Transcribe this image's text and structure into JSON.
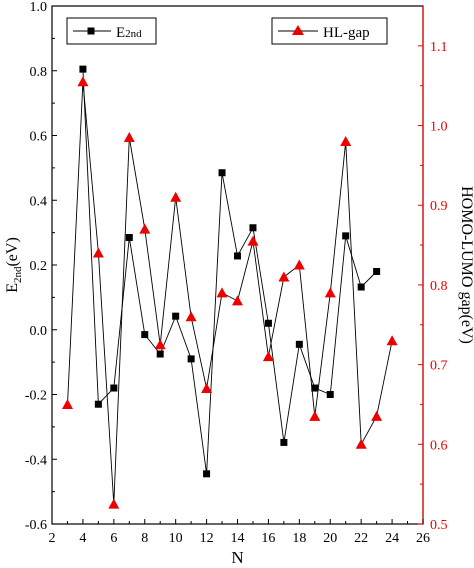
{
  "chart_data": {
    "type": "line",
    "title": "",
    "xlabel": "N",
    "ylabel_left": "E2nd(eV)",
    "ylabel_left_main": "E",
    "ylabel_left_sub": "2nd",
    "ylabel_left_unit": "(eV)",
    "ylabel_right": "HOMO-LUMO gap(eV)",
    "xlim": [
      2,
      26
    ],
    "ylim_left": [
      -0.6,
      1.0
    ],
    "ylim_right": [
      0.5,
      1.15
    ],
    "x_ticks": [
      2,
      4,
      6,
      8,
      10,
      12,
      14,
      16,
      18,
      20,
      22,
      24,
      26
    ],
    "y_left_ticks": [
      -0.6,
      -0.4,
      -0.2,
      0.0,
      0.2,
      0.4,
      0.6,
      0.8,
      1.0
    ],
    "y_left_tick_labels": [
      "-0.6",
      "-0.4",
      "-0.2",
      "0.0",
      "0.2",
      "0.4",
      "0.6",
      "0.8",
      "1.0"
    ],
    "y_right_ticks": [
      0.5,
      0.6,
      0.7,
      0.8,
      0.9,
      1.0,
      1.1
    ],
    "y_right_tick_labels": [
      "0.5",
      "0.6",
      "0.7",
      "0.8",
      "0.9",
      "1.0",
      "1.1"
    ],
    "grid": false,
    "series": [
      {
        "name": "E2nd",
        "legend_main": "E",
        "legend_sub": "2nd",
        "axis": "left",
        "marker": "square",
        "color": "#000000",
        "x": [
          4,
          5,
          6,
          7,
          8,
          9,
          10,
          11,
          12,
          13,
          14,
          15,
          16,
          17,
          18,
          19,
          20,
          21,
          22,
          23
        ],
        "y": [
          0.805,
          -0.23,
          -0.18,
          0.285,
          -0.015,
          -0.075,
          0.042,
          -0.09,
          -0.445,
          0.485,
          0.228,
          0.315,
          0.02,
          -0.348,
          -0.045,
          -0.18,
          -0.2,
          0.29,
          0.132,
          0.18
        ]
      },
      {
        "name": "HL-gap",
        "legend_main": "HL-gap",
        "axis": "right",
        "marker": "triangle",
        "color": "#ee0000",
        "x": [
          3,
          4,
          5,
          6,
          7,
          8,
          9,
          10,
          11,
          12,
          13,
          14,
          15,
          16,
          17,
          18,
          19,
          20,
          21,
          22,
          23,
          24
        ],
        "y": [
          0.65,
          1.055,
          0.84,
          0.525,
          0.985,
          0.87,
          0.725,
          0.91,
          0.76,
          0.67,
          0.79,
          0.78,
          0.855,
          0.71,
          0.81,
          0.825,
          0.635,
          0.79,
          0.98,
          0.6,
          0.635,
          0.73
        ]
      }
    ],
    "legend": [
      {
        "position": "top-left",
        "series": 0
      },
      {
        "position": "top-right",
        "series": 1
      }
    ]
  }
}
